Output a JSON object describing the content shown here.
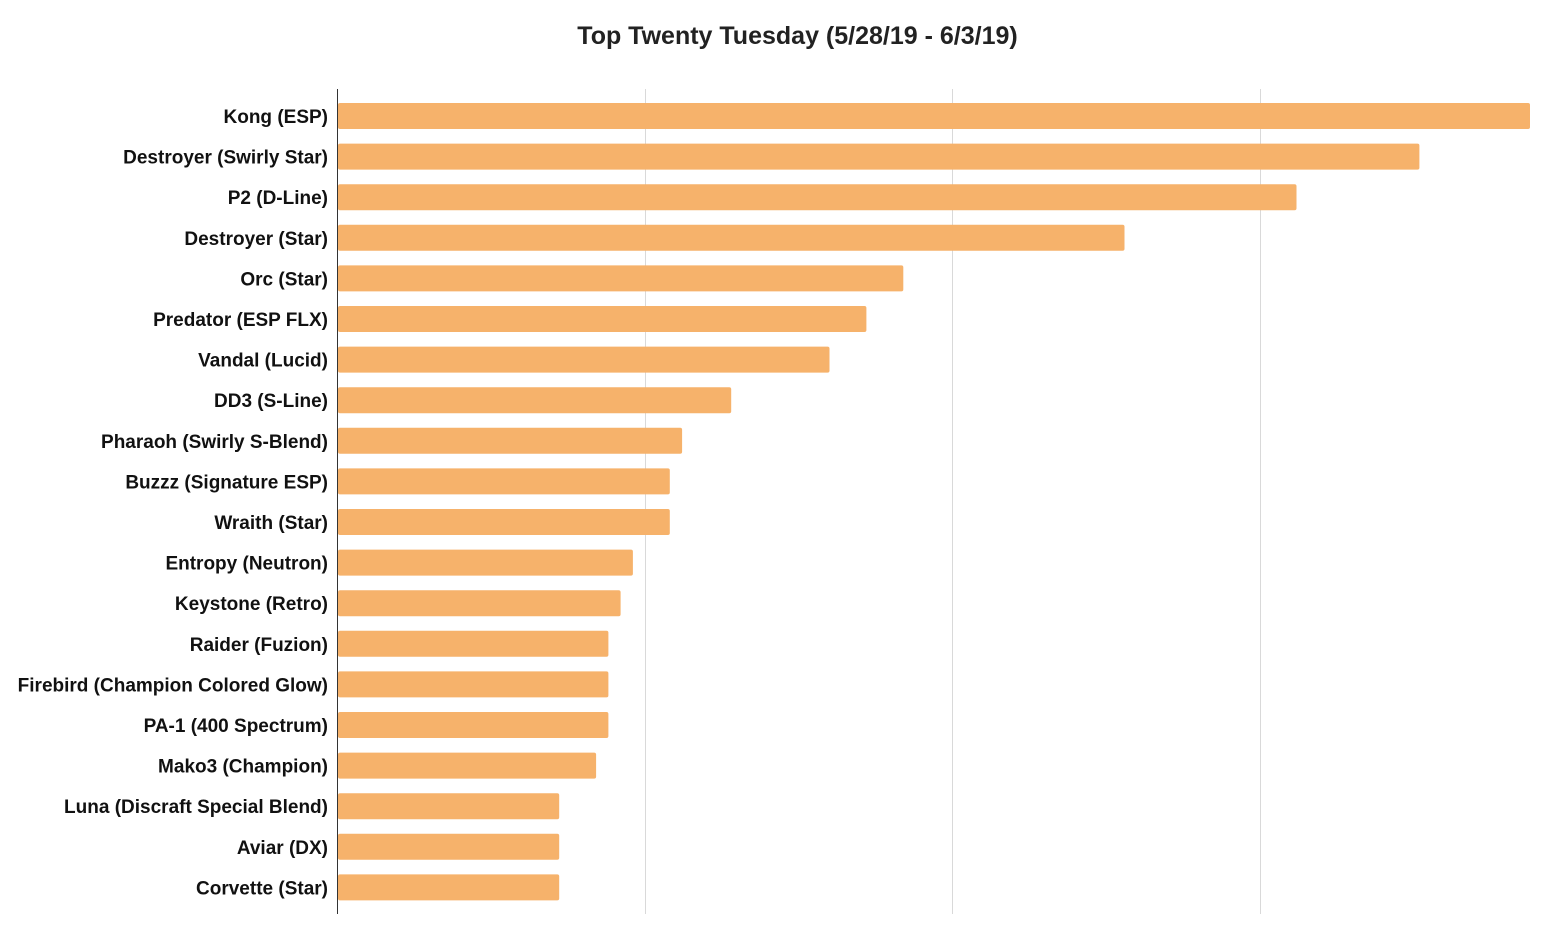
{
  "chart_data": {
    "type": "bar",
    "orientation": "horizontal",
    "title": "Top Twenty Tuesday (5/28/19 - 6/3/19)",
    "xlabel": "",
    "ylabel": "",
    "categories": [
      "Kong (ESP)",
      "Destroyer (Swirly Star)",
      "P2 (D-Line)",
      "Destroyer (Star)",
      "Orc (Star)",
      "Predator (ESP FLX)",
      "Vandal (Lucid)",
      "DD3 (S-Line)",
      "Pharaoh (Swirly S-Blend)",
      "Buzzz (Signature ESP)",
      "Wraith (Star)",
      "Entropy (Neutron)",
      "Keystone (Retro)",
      "Raider (Fuzion)",
      "Firebird (Champion Colored Glow)",
      "PA-1 (400 Spectrum)",
      "Mako3 (Champion)",
      "Luna (Discraft Special Blend)",
      "Aviar (DX)",
      "Corvette (Star)"
    ],
    "values": [
      97,
      88,
      78,
      64,
      46,
      43,
      40,
      32,
      28,
      27,
      27,
      24,
      23,
      22,
      22,
      22,
      21,
      18,
      18,
      18
    ],
    "xlim": [
      0,
      97
    ],
    "gridlines_at": [
      25,
      50,
      75
    ],
    "grid": true,
    "tick_labels_shown": false,
    "legend": "none",
    "bar_color": "#f6b26b",
    "gridline_color": "#d9d9d9",
    "axis_color": "#333333"
  }
}
